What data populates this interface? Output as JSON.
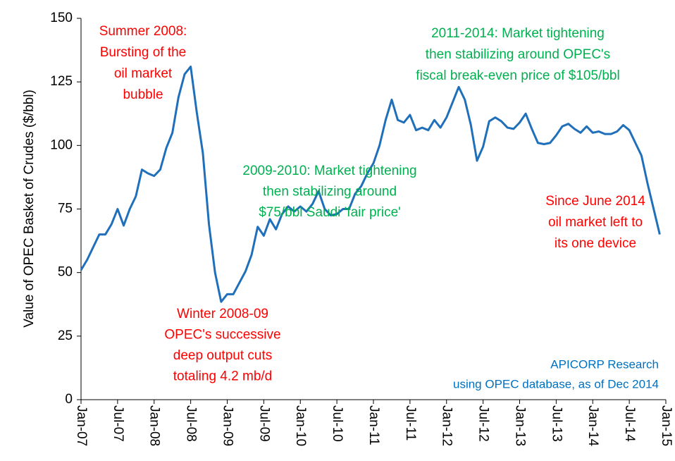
{
  "chart_data": {
    "type": "line",
    "y_label": "Value of OPEC Basket of Crudes ($/bbl)",
    "categories": [
      "Jan-07",
      null,
      null,
      null,
      null,
      null,
      "Jul-07",
      null,
      null,
      null,
      null,
      null,
      "Jan-08",
      null,
      null,
      null,
      null,
      null,
      "Jul-08",
      null,
      null,
      null,
      null,
      null,
      "Jan-09",
      null,
      null,
      null,
      null,
      null,
      "Jul-09",
      null,
      null,
      null,
      null,
      null,
      "Jan-10",
      null,
      null,
      null,
      null,
      null,
      "Jul-10",
      null,
      null,
      null,
      null,
      null,
      "Jan-11",
      null,
      null,
      null,
      null,
      null,
      "Jul-11",
      null,
      null,
      null,
      null,
      null,
      "Jan-12",
      null,
      null,
      null,
      null,
      null,
      "Jul-12",
      null,
      null,
      null,
      null,
      null,
      "Jan-13",
      null,
      null,
      null,
      null,
      null,
      "Jul-13",
      null,
      null,
      null,
      null,
      null,
      "Jan-14",
      null,
      null,
      null,
      null,
      null,
      "Jul-14",
      null,
      null,
      null,
      null,
      null,
      "Jan-15"
    ],
    "series": [
      {
        "name": "OPEC Basket",
        "color": "#1f6fba",
        "values": [
          51,
          55,
          60,
          65,
          65,
          69,
          75,
          68.5,
          75,
          80,
          90.5,
          89,
          88,
          90.5,
          99,
          105,
          119,
          128,
          131,
          113,
          97,
          69,
          50,
          38.5,
          41.5,
          41.5,
          46,
          50.5,
          57,
          68,
          64.5,
          71,
          67,
          73,
          76,
          74,
          76,
          74,
          77,
          82,
          75,
          72.5,
          73,
          75,
          75,
          81,
          84,
          89,
          93,
          100,
          110,
          118,
          110,
          109,
          112,
          106,
          107,
          106,
          110,
          107,
          111,
          117,
          123,
          118,
          108,
          94,
          99.5,
          109.5,
          111,
          109.5,
          107,
          106.5,
          109,
          112.5,
          106.5,
          101,
          100.5,
          101,
          104,
          107.5,
          108.5,
          106.5,
          105,
          107.5,
          105,
          105.5,
          104.5,
          104.5,
          105.5,
          108,
          106,
          101,
          96,
          85,
          75,
          65,
          null
        ]
      }
    ],
    "ylim": [
      0,
      150
    ],
    "yticks": [
      0,
      25,
      50,
      75,
      100,
      125,
      150
    ],
    "annotations": [
      {
        "color": "#ff0000",
        "lines": [
          "Summer 2008:",
          "Bursting of the",
          "oil market",
          "bubble"
        ]
      },
      {
        "color": "#00b050",
        "lines": [
          "2009-2010: Market tightening",
          "then stabilizing around",
          "$75/bbl Saudi 'fair price'"
        ]
      },
      {
        "color": "#00b050",
        "lines": [
          "2011-2014: Market tightening",
          "then stabilizing around OPEC's",
          "fiscal break-even price of $105/bbl"
        ]
      },
      {
        "color": "#ff0000",
        "lines": [
          "Winter 2008-09",
          "OPEC's successive",
          "deep output cuts",
          "totaling 4.2 mb/d"
        ]
      },
      {
        "color": "#ff0000",
        "lines": [
          "Since June 2014",
          "oil market left to",
          "its one device"
        ]
      },
      {
        "color": "#0070c0",
        "lines": [
          "APICORP Research",
          "using OPEC database, as of Dec 2014"
        ]
      }
    ]
  }
}
